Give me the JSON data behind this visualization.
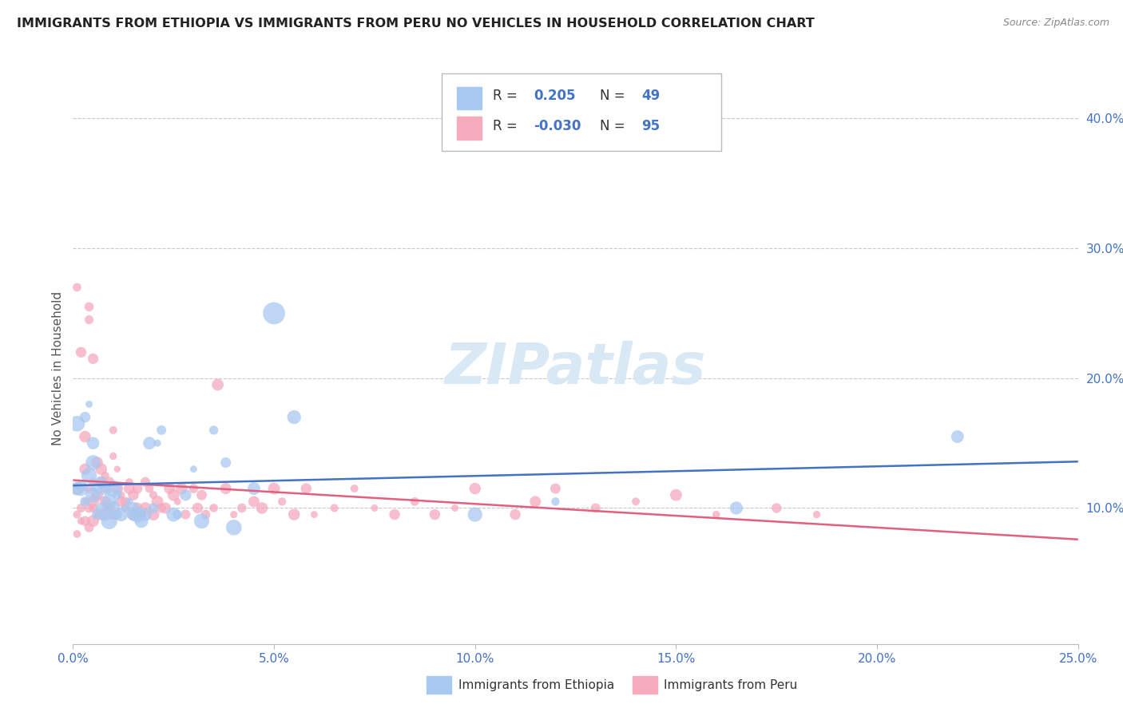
{
  "title": "IMMIGRANTS FROM ETHIOPIA VS IMMIGRANTS FROM PERU NO VEHICLES IN HOUSEHOLD CORRELATION CHART",
  "source": "Source: ZipAtlas.com",
  "ylabel": "No Vehicles in Household",
  "legend_ethiopia": "Immigrants from Ethiopia",
  "legend_peru": "Immigrants from Peru",
  "r_ethiopia": "0.205",
  "n_ethiopia": "49",
  "r_peru": "-0.030",
  "n_peru": "95",
  "color_ethiopia": "#A8C8F0",
  "color_peru": "#F5AABE",
  "trendline_ethiopia": "#4472C4",
  "trendline_peru": "#E06080",
  "background_color": "#FFFFFF",
  "watermark_text": "ZIPatlas",
  "watermark_color": "#D8E8F5",
  "ethiopia_x": [
    0.001,
    0.001,
    0.002,
    0.003,
    0.003,
    0.004,
    0.004,
    0.005,
    0.005,
    0.005,
    0.006,
    0.006,
    0.007,
    0.007,
    0.008,
    0.008,
    0.009,
    0.009,
    0.01,
    0.01,
    0.011,
    0.011,
    0.012,
    0.013,
    0.014,
    0.015,
    0.015,
    0.016,
    0.017,
    0.018,
    0.019,
    0.02,
    0.021,
    0.022,
    0.025,
    0.026,
    0.028,
    0.03,
    0.032,
    0.035,
    0.038,
    0.04,
    0.045,
    0.05,
    0.055,
    0.1,
    0.12,
    0.165,
    0.22
  ],
  "ethiopia_y": [
    0.115,
    0.165,
    0.115,
    0.105,
    0.17,
    0.125,
    0.18,
    0.11,
    0.135,
    0.15,
    0.095,
    0.115,
    0.1,
    0.12,
    0.095,
    0.115,
    0.09,
    0.105,
    0.1,
    0.115,
    0.095,
    0.11,
    0.095,
    0.1,
    0.105,
    0.095,
    0.1,
    0.095,
    0.09,
    0.095,
    0.15,
    0.1,
    0.15,
    0.16,
    0.095,
    0.095,
    0.11,
    0.13,
    0.09,
    0.16,
    0.135,
    0.085,
    0.115,
    0.25,
    0.17,
    0.095,
    0.105,
    0.1,
    0.155
  ],
  "ethiopia_sizes": [
    60,
    50,
    55,
    50,
    55,
    55,
    55,
    50,
    55,
    55,
    50,
    50,
    50,
    50,
    50,
    50,
    50,
    50,
    50,
    50,
    50,
    50,
    50,
    50,
    50,
    50,
    55,
    50,
    50,
    50,
    50,
    50,
    55,
    55,
    50,
    50,
    50,
    55,
    50,
    60,
    55,
    50,
    55,
    120,
    55,
    50,
    55,
    55,
    55
  ],
  "peru_x": [
    0.001,
    0.001,
    0.001,
    0.001,
    0.002,
    0.002,
    0.002,
    0.002,
    0.003,
    0.003,
    0.003,
    0.003,
    0.004,
    0.004,
    0.004,
    0.004,
    0.004,
    0.005,
    0.005,
    0.005,
    0.005,
    0.005,
    0.006,
    0.006,
    0.006,
    0.007,
    0.007,
    0.007,
    0.008,
    0.008,
    0.008,
    0.009,
    0.009,
    0.01,
    0.01,
    0.01,
    0.011,
    0.011,
    0.012,
    0.012,
    0.013,
    0.013,
    0.014,
    0.014,
    0.015,
    0.015,
    0.016,
    0.016,
    0.017,
    0.018,
    0.018,
    0.019,
    0.02,
    0.02,
    0.021,
    0.022,
    0.023,
    0.024,
    0.025,
    0.026,
    0.027,
    0.028,
    0.03,
    0.031,
    0.032,
    0.033,
    0.035,
    0.036,
    0.038,
    0.04,
    0.042,
    0.045,
    0.047,
    0.05,
    0.052,
    0.055,
    0.058,
    0.06,
    0.065,
    0.07,
    0.075,
    0.08,
    0.085,
    0.09,
    0.095,
    0.1,
    0.11,
    0.115,
    0.12,
    0.13,
    0.14,
    0.15,
    0.16,
    0.175,
    0.185
  ],
  "peru_y": [
    0.27,
    0.115,
    0.095,
    0.08,
    0.1,
    0.115,
    0.22,
    0.09,
    0.155,
    0.13,
    0.105,
    0.09,
    0.255,
    0.245,
    0.115,
    0.085,
    0.1,
    0.105,
    0.1,
    0.12,
    0.215,
    0.09,
    0.135,
    0.11,
    0.095,
    0.13,
    0.12,
    0.095,
    0.115,
    0.125,
    0.105,
    0.12,
    0.1,
    0.16,
    0.14,
    0.095,
    0.13,
    0.115,
    0.11,
    0.105,
    0.105,
    0.1,
    0.12,
    0.115,
    0.095,
    0.11,
    0.115,
    0.1,
    0.095,
    0.12,
    0.1,
    0.115,
    0.11,
    0.095,
    0.105,
    0.1,
    0.1,
    0.115,
    0.11,
    0.105,
    0.115,
    0.095,
    0.115,
    0.1,
    0.11,
    0.095,
    0.1,
    0.195,
    0.115,
    0.095,
    0.1,
    0.105,
    0.1,
    0.115,
    0.105,
    0.095,
    0.115,
    0.095,
    0.1,
    0.115,
    0.1,
    0.095,
    0.105,
    0.095,
    0.1,
    0.115,
    0.095,
    0.105,
    0.115,
    0.1,
    0.105,
    0.11,
    0.095,
    0.1,
    0.095
  ],
  "xlim": [
    0.0,
    0.25
  ],
  "ylim": [
    -0.005,
    0.42
  ],
  "ytick_values": [
    0.1,
    0.2,
    0.3,
    0.4
  ],
  "ytick_labels": [
    "10.0%",
    "20.0%",
    "30.0%",
    "40.0%"
  ],
  "xtick_values": [
    0.0,
    0.05,
    0.1,
    0.15,
    0.2,
    0.25
  ],
  "xtick_labels": [
    "0.0%",
    "5.0%",
    "10.0%",
    "15.0%",
    "20.0%",
    "25.0%"
  ]
}
